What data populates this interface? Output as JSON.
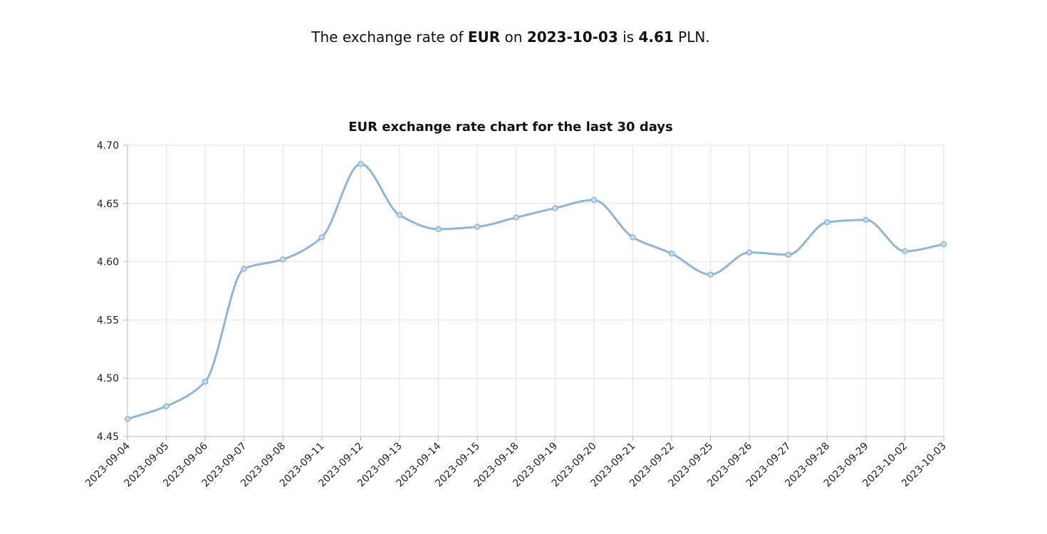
{
  "headline": {
    "prefix": "The exchange rate of",
    "currency": "EUR",
    "on_word": "on",
    "date": "2023-10-03",
    "is_word": "is",
    "rate": "4.61",
    "unit": "PLN."
  },
  "colors": {
    "line": "#8fb6d8",
    "point_fill": "#c9dcee"
  },
  "chart_data": {
    "type": "line",
    "title": "EUR exchange rate chart for the last 30 days",
    "xlabel": "",
    "ylabel": "",
    "ylim": [
      4.45,
      4.7
    ],
    "yticks": [
      "4.45",
      "4.50",
      "4.55",
      "4.60",
      "4.65",
      "4.70"
    ],
    "grid": true,
    "categories": [
      "2023-09-04",
      "2023-09-05",
      "2023-09-06",
      "2023-09-07",
      "2023-09-08",
      "2023-09-11",
      "2023-09-12",
      "2023-09-13",
      "2023-09-14",
      "2023-09-15",
      "2023-09-18",
      "2023-09-19",
      "2023-09-20",
      "2023-09-21",
      "2023-09-22",
      "2023-09-25",
      "2023-09-26",
      "2023-09-27",
      "2023-09-28",
      "2023-09-29",
      "2023-10-02",
      "2023-10-03"
    ],
    "values": [
      4.465,
      4.476,
      4.497,
      4.594,
      4.602,
      4.621,
      4.684,
      4.64,
      4.628,
      4.63,
      4.638,
      4.646,
      4.653,
      4.621,
      4.607,
      4.589,
      4.608,
      4.606,
      4.634,
      4.636,
      4.609,
      4.615
    ]
  }
}
